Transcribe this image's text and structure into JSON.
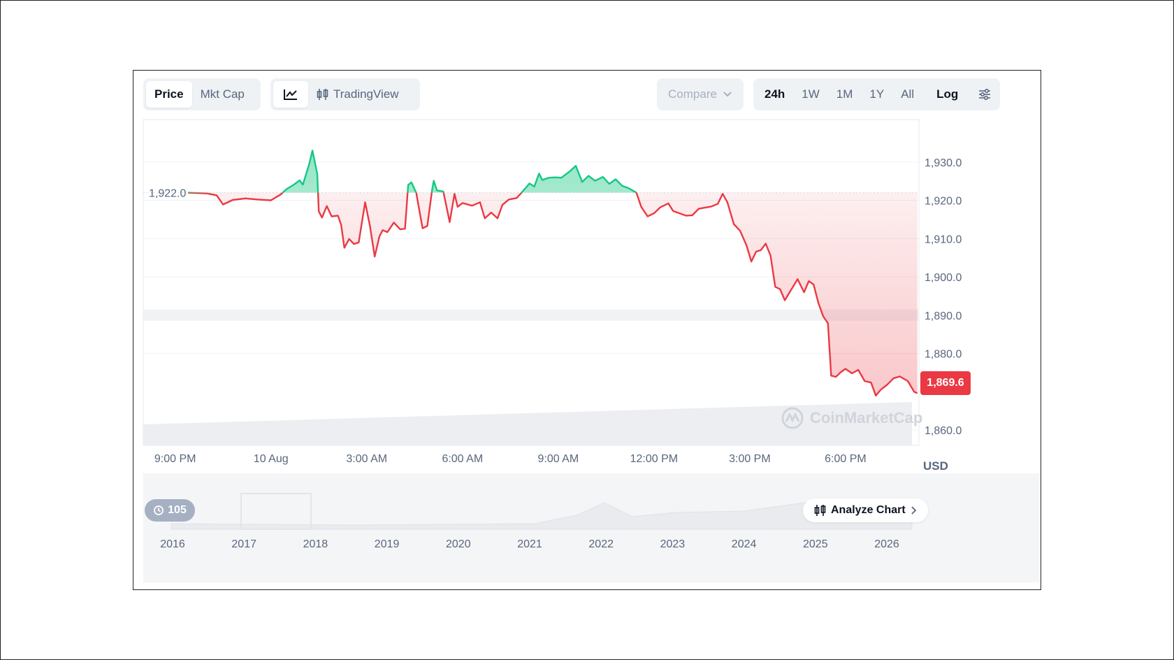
{
  "toolbar": {
    "metric_tabs": [
      "Price",
      "Mkt Cap"
    ],
    "active_metric": "Price",
    "chart_types": [
      "line-chart-icon",
      "TradingView"
    ],
    "compare_label": "Compare",
    "ranges": [
      "24h",
      "1W",
      "1M",
      "1Y",
      "All"
    ],
    "active_range": "24h",
    "log_label": "Log",
    "settings_icon": "sliders-icon"
  },
  "colors": {
    "up": "#16c784",
    "down": "#ea3943",
    "grid": "#eff2f5",
    "text_muted": "#58667e"
  },
  "chart_data": {
    "type": "line",
    "ylabel": "USD",
    "ylim": [
      1856,
      1940
    ],
    "y_ticks": [
      "1,930.0",
      "1,920.0",
      "1,910.0",
      "1,900.0",
      "1,890.0",
      "1,880.0",
      "1,860.0"
    ],
    "y_tick_values": [
      1930,
      1920,
      1910,
      1900,
      1890,
      1880,
      1860
    ],
    "x_tick_labels": [
      "9:00 PM",
      "10 Aug",
      "3:00 AM",
      "6:00 AM",
      "9:00 AM",
      "12:00 PM",
      "3:00 PM",
      "6:00 PM"
    ],
    "x_tick_hours": [
      1.0,
      4.0,
      7.0,
      10.0,
      13.0,
      16.0,
      19.0,
      22.0
    ],
    "x_range_hours": [
      0,
      24.3
    ],
    "baseline": 1922.0,
    "baseline_label": "1,922.0",
    "current_price": 1869.6,
    "current_price_label": "1,869.6",
    "series": [
      {
        "points": [
          [
            1.4,
            1922.0
          ],
          [
            2.0,
            1921.8
          ],
          [
            2.3,
            1921.3
          ],
          [
            2.5,
            1918.9
          ],
          [
            2.8,
            1920.1
          ],
          [
            3.2,
            1920.5
          ],
          [
            3.6,
            1920.2
          ],
          [
            4.0,
            1920.0
          ],
          [
            4.3,
            1921.5
          ],
          [
            4.5,
            1923.0
          ],
          [
            4.7,
            1924.0
          ],
          [
            4.9,
            1925.2
          ],
          [
            5.0,
            1924.1
          ],
          [
            5.2,
            1929.5
          ],
          [
            5.3,
            1933.0
          ],
          [
            5.45,
            1926.9
          ],
          [
            5.5,
            1917.1
          ],
          [
            5.6,
            1915.5
          ],
          [
            5.75,
            1918.5
          ],
          [
            5.9,
            1915.8
          ],
          [
            6.1,
            1916.0
          ],
          [
            6.2,
            1913.6
          ],
          [
            6.3,
            1907.6
          ],
          [
            6.45,
            1909.9
          ],
          [
            6.6,
            1908.6
          ],
          [
            6.75,
            1909.0
          ],
          [
            6.95,
            1919.5
          ],
          [
            7.1,
            1913.4
          ],
          [
            7.25,
            1905.3
          ],
          [
            7.4,
            1910.6
          ],
          [
            7.5,
            1912.2
          ],
          [
            7.65,
            1911.7
          ],
          [
            7.85,
            1914.2
          ],
          [
            8.05,
            1912.4
          ],
          [
            8.2,
            1912.6
          ],
          [
            8.3,
            1924.0
          ],
          [
            8.4,
            1924.7
          ],
          [
            8.55,
            1922.0
          ],
          [
            8.75,
            1912.7
          ],
          [
            8.9,
            1913.3
          ],
          [
            9.05,
            1922.8
          ],
          [
            9.1,
            1925.1
          ],
          [
            9.2,
            1922.6
          ],
          [
            9.4,
            1922.3
          ],
          [
            9.6,
            1914.3
          ],
          [
            9.75,
            1921.7
          ],
          [
            9.85,
            1918.3
          ],
          [
            10.0,
            1919.3
          ],
          [
            10.3,
            1918.6
          ],
          [
            10.55,
            1919.5
          ],
          [
            10.7,
            1915.3
          ],
          [
            10.9,
            1916.8
          ],
          [
            11.1,
            1915.3
          ],
          [
            11.25,
            1918.8
          ],
          [
            11.45,
            1920.2
          ],
          [
            11.7,
            1920.6
          ],
          [
            11.85,
            1922.0
          ],
          [
            12.1,
            1924.4
          ],
          [
            12.25,
            1923.6
          ],
          [
            12.4,
            1927.0
          ],
          [
            12.5,
            1925.3
          ],
          [
            12.7,
            1925.9
          ],
          [
            12.9,
            1926.0
          ],
          [
            13.1,
            1925.9
          ],
          [
            13.35,
            1927.5
          ],
          [
            13.55,
            1929.0
          ],
          [
            13.75,
            1924.8
          ],
          [
            13.95,
            1926.4
          ],
          [
            14.15,
            1925.1
          ],
          [
            14.4,
            1926.1
          ],
          [
            14.6,
            1924.3
          ],
          [
            14.8,
            1925.5
          ],
          [
            15.0,
            1923.8
          ],
          [
            15.2,
            1923.2
          ],
          [
            15.45,
            1922.0
          ],
          [
            15.6,
            1918.3
          ],
          [
            15.8,
            1915.8
          ],
          [
            16.0,
            1916.6
          ],
          [
            16.2,
            1918.2
          ],
          [
            16.45,
            1919.2
          ],
          [
            16.6,
            1917.2
          ],
          [
            16.8,
            1916.6
          ],
          [
            17.0,
            1916.0
          ],
          [
            17.2,
            1916.1
          ],
          [
            17.4,
            1917.8
          ],
          [
            17.6,
            1918.1
          ],
          [
            17.8,
            1918.4
          ],
          [
            18.0,
            1919.1
          ],
          [
            18.15,
            1921.7
          ],
          [
            18.3,
            1919.5
          ],
          [
            18.5,
            1913.8
          ],
          [
            18.7,
            1912.0
          ],
          [
            18.9,
            1908.2
          ],
          [
            19.05,
            1904.0
          ],
          [
            19.2,
            1906.6
          ],
          [
            19.35,
            1907.0
          ],
          [
            19.5,
            1908.7
          ],
          [
            19.65,
            1905.6
          ],
          [
            19.8,
            1897.4
          ],
          [
            19.95,
            1896.8
          ],
          [
            20.1,
            1893.9
          ],
          [
            20.3,
            1896.7
          ],
          [
            20.5,
            1899.4
          ],
          [
            20.7,
            1896.0
          ],
          [
            20.85,
            1898.9
          ],
          [
            21.0,
            1898.0
          ],
          [
            21.15,
            1893.2
          ],
          [
            21.3,
            1889.7
          ],
          [
            21.45,
            1887.9
          ],
          [
            21.55,
            1874.2
          ],
          [
            21.7,
            1873.9
          ],
          [
            21.85,
            1875.1
          ],
          [
            22.0,
            1876.0
          ],
          [
            22.2,
            1874.8
          ],
          [
            22.4,
            1875.7
          ],
          [
            22.6,
            1872.8
          ],
          [
            22.8,
            1872.4
          ],
          [
            22.95,
            1869.0
          ],
          [
            23.1,
            1870.5
          ],
          [
            23.3,
            1871.8
          ],
          [
            23.5,
            1873.5
          ],
          [
            23.7,
            1874.0
          ],
          [
            23.95,
            1872.8
          ],
          [
            24.15,
            1870.0
          ],
          [
            24.25,
            1869.6
          ]
        ]
      }
    ],
    "x_axis_band": "bottom",
    "navigator": {
      "years": [
        "2016",
        "2017",
        "2018",
        "2019",
        "2020",
        "2021",
        "2022",
        "2023",
        "2024",
        "2025",
        "2026"
      ]
    },
    "grid": true
  },
  "overlay": {
    "history_count": "105",
    "analyze_label": "Analyze Chart",
    "watermark": "CoinMarketCap"
  }
}
